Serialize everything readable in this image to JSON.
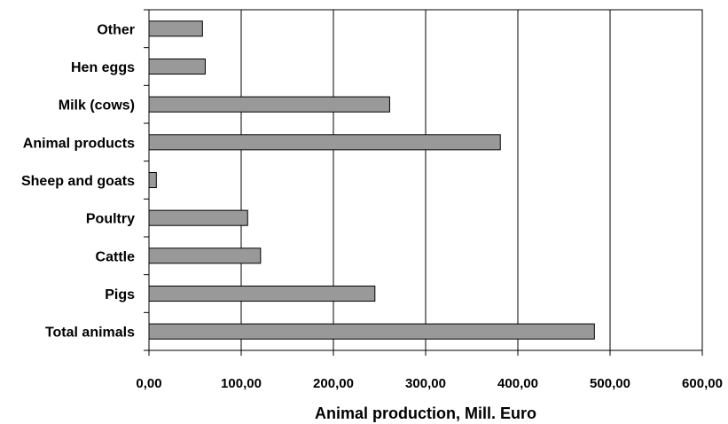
{
  "chart_data": {
    "type": "bar",
    "orientation": "horizontal",
    "categories": [
      "Total animals",
      "Pigs",
      "Cattle",
      "Poultry",
      "Sheep and goats",
      "Animal products",
      "Milk (cows)",
      "Hen eggs",
      "Other"
    ],
    "values": [
      483,
      245,
      121,
      107,
      8,
      381,
      261,
      61,
      58
    ],
    "xlabel": "Animal production, Mill. Euro",
    "ylabel": "",
    "xlim": [
      0,
      600
    ],
    "xticks": [
      "0,00",
      "100,00",
      "200,00",
      "300,00",
      "400,00",
      "500,00",
      "600,00"
    ],
    "grid": "vertical",
    "legend": "none",
    "colors": {
      "bar_fill": "#999999",
      "bar_stroke": "#000000",
      "grid": "#000000",
      "axis": "#000000"
    }
  }
}
